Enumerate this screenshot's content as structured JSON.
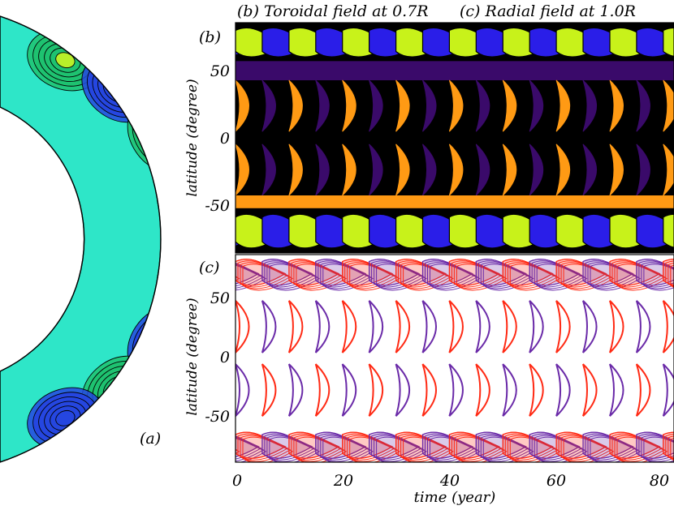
{
  "panel_a": {
    "label": "(a)"
  },
  "panel_b": {
    "tag": "(b)",
    "title": "(b) Toroidal field at 0.7R",
    "ylabel": "latitude (degree)",
    "yticks": [
      "50",
      "0",
      "-50"
    ]
  },
  "panel_c": {
    "tag": "(c)",
    "title": "(c) Radial field at 1.0R",
    "ylabel": "latitude (degree)",
    "yticks": [
      "50",
      "0",
      "-50"
    ]
  },
  "time_axis": {
    "xlabel": "time (year)",
    "xticks": [
      "0",
      "20",
      "40",
      "60",
      "80"
    ]
  },
  "colors": {
    "background": "#ffffff",
    "shell_base": "#2ee6c8",
    "cell_blue": "#2546e0",
    "cell_green": "#1ec270",
    "cell_lime": "#b8ef2a",
    "cell_orange": "#ff8c1a",
    "cell_darkblue": "#141a6e",
    "toroidal_lime": "#c8f21a",
    "toroidal_blue": "#2a1ee8",
    "toroidal_orange": "#ff9a14",
    "toroidal_purple": "#3a0a6a",
    "toroidal_black": "#000000",
    "radial_red": "#ff2a14",
    "radial_purple": "#6a2aa8"
  },
  "chart_data": [
    {
      "type": "heatmap",
      "title": "(b) Toroidal field at 0.7R",
      "xlabel": "time (year)",
      "ylabel": "latitude (degree)",
      "xlim": [
        0,
        82
      ],
      "ylim": [
        -90,
        90
      ],
      "xticks": [
        0,
        20,
        40,
        60,
        80
      ],
      "yticks": [
        50,
        0,
        -50
      ],
      "bands": [
        {
          "lat_range": [
            60,
            90
          ],
          "pattern": "wing",
          "colors": [
            "toroidal_lime",
            "toroidal_blue"
          ]
        },
        {
          "lat_range": [
            45,
            60
          ],
          "pattern": "band",
          "colors": [
            "toroidal_purple"
          ]
        },
        {
          "lat_range": [
            5,
            45
          ],
          "pattern": "butterfly",
          "colors": [
            "toroidal_orange",
            "toroidal_purple"
          ]
        },
        {
          "lat_range": [
            -45,
            -5
          ],
          "pattern": "butterfly",
          "colors": [
            "toroidal_orange",
            "toroidal_purple"
          ]
        },
        {
          "lat_range": [
            -55,
            -45
          ],
          "pattern": "band",
          "colors": [
            "toroidal_orange"
          ]
        },
        {
          "lat_range": [
            -90,
            -55
          ],
          "pattern": "wing",
          "colors": [
            "toroidal_lime",
            "toroidal_blue"
          ]
        }
      ],
      "period_years": 10
    },
    {
      "type": "heatmap",
      "title": "(c) Radial field at 1.0R",
      "xlabel": "time (year)",
      "ylabel": "latitude (degree)",
      "xlim": [
        0,
        82
      ],
      "ylim": [
        -90,
        90
      ],
      "xticks": [
        0,
        20,
        40,
        60,
        80
      ],
      "yticks": [
        50,
        0,
        -50
      ],
      "bands": [
        {
          "lat_range": [
            60,
            90
          ],
          "pattern": "wing",
          "colors": [
            "radial_red",
            "radial_purple"
          ]
        },
        {
          "lat_range": [
            5,
            50
          ],
          "pattern": "butterfly",
          "colors": [
            "radial_red",
            "radial_purple"
          ]
        },
        {
          "lat_range": [
            -50,
            -5
          ],
          "pattern": "butterfly",
          "colors": [
            "radial_purple",
            "radial_red"
          ]
        },
        {
          "lat_range": [
            -90,
            -60
          ],
          "pattern": "wing",
          "colors": [
            "radial_red",
            "radial_purple"
          ]
        }
      ],
      "period_years": 10
    }
  ]
}
